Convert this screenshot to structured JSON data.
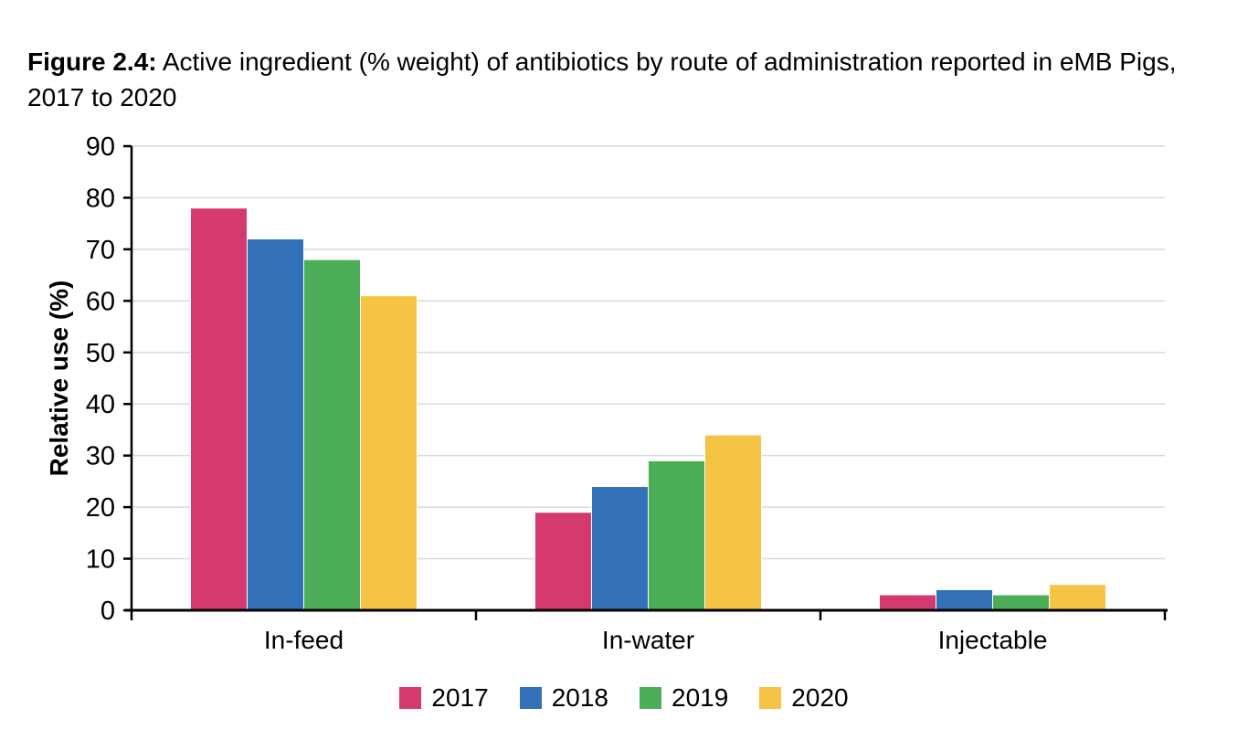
{
  "figure": {
    "label": "Figure 2.4:",
    "caption": " Active ingredient (% weight) of antibiotics by route of administration reported in eMB Pigs, 2017 to 2020"
  },
  "chart_data": {
    "type": "bar",
    "title": "Active ingredient (% weight) of antibiotics by route of administration reported in eMB Pigs, 2017 to 2020",
    "categories": [
      "In-feed",
      "In-water",
      "Injectable"
    ],
    "series": [
      {
        "name": "2017",
        "color": "#D43A70",
        "values": [
          78,
          19,
          3
        ]
      },
      {
        "name": "2018",
        "color": "#3270B7",
        "values": [
          72,
          24,
          4
        ]
      },
      {
        "name": "2019",
        "color": "#4DAE5A",
        "values": [
          68,
          29,
          3
        ]
      },
      {
        "name": "2020",
        "color": "#F5C444",
        "values": [
          61,
          34,
          5
        ]
      }
    ],
    "xlabel": "",
    "ylabel": "Relative use (%)",
    "ylim": [
      0,
      90
    ],
    "yticks": [
      0,
      10,
      20,
      30,
      40,
      50,
      60,
      70,
      80,
      90
    ],
    "grid": true,
    "grid_color": "#D9D9D9",
    "axis_color": "#000000",
    "legend_position": "bottom"
  }
}
